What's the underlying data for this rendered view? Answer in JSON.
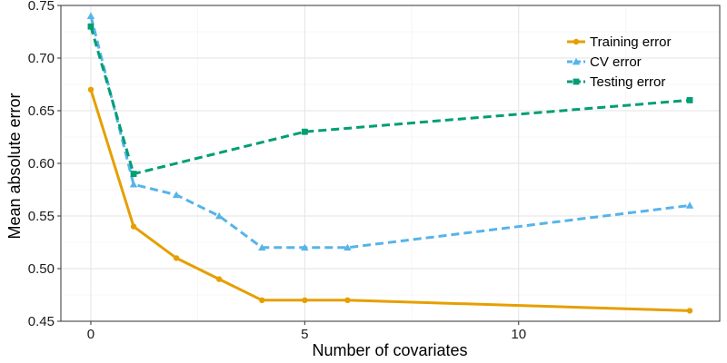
{
  "chart_data": {
    "type": "line",
    "title": "",
    "xlabel": "Number of covariates",
    "ylabel": "Mean absolute error",
    "xlim": [
      -0.7,
      14.7
    ],
    "ylim": [
      0.45,
      0.75
    ],
    "x_ticks": [
      0,
      5,
      10
    ],
    "x_tick_labels": [
      "0",
      "5",
      "10"
    ],
    "y_ticks": [
      0.45,
      0.5,
      0.55,
      0.6,
      0.65,
      0.7,
      0.75
    ],
    "y_tick_labels": [
      "0.45",
      "0.50",
      "0.55",
      "0.60",
      "0.65",
      "0.70",
      "0.75"
    ],
    "grid": true,
    "legend_position": "top-right",
    "series": [
      {
        "name": "Training error",
        "color": "#E69F00",
        "dash": "solid",
        "marker": "circle",
        "x": [
          0,
          1,
          2,
          3,
          4,
          5,
          6,
          14
        ],
        "y": [
          0.67,
          0.54,
          0.51,
          0.49,
          0.47,
          0.47,
          0.47,
          0.46
        ]
      },
      {
        "name": "CV error",
        "color": "#56B4E9",
        "dash": "dashed",
        "marker": "triangle",
        "x": [
          0,
          1,
          2,
          3,
          4,
          5,
          6,
          14
        ],
        "y": [
          0.74,
          0.58,
          0.57,
          0.55,
          0.52,
          0.52,
          0.52,
          0.56
        ]
      },
      {
        "name": "Testing error",
        "color": "#009E73",
        "dash": "dashed",
        "marker": "square",
        "x": [
          0,
          1,
          5,
          14
        ],
        "y": [
          0.73,
          0.59,
          0.63,
          0.66
        ]
      }
    ]
  }
}
